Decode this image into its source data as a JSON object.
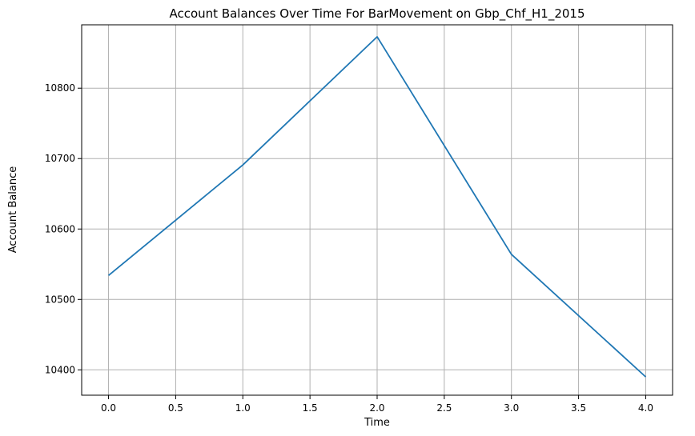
{
  "chart_data": {
    "type": "line",
    "title": "Account Balances Over Time For BarMovement on Gbp_Chf_H1_2015",
    "xlabel": "Time",
    "ylabel": "Account Balance",
    "xlim": [
      -0.2,
      4.2
    ],
    "ylim": [
      10364,
      10890
    ],
    "x_ticks": [
      0.0,
      0.5,
      1.0,
      1.5,
      2.0,
      2.5,
      3.0,
      3.5,
      4.0
    ],
    "x_tick_labels": [
      "0.0",
      "0.5",
      "1.0",
      "1.5",
      "2.0",
      "2.5",
      "3.0",
      "3.5",
      "4.0"
    ],
    "y_ticks": [
      10400,
      10500,
      10600,
      10700,
      10800
    ],
    "y_tick_labels": [
      "10400",
      "10500",
      "10600",
      "10700",
      "10800"
    ],
    "grid": true,
    "legend": "none",
    "series": [
      {
        "x": [
          0,
          1,
          2,
          3,
          4
        ],
        "values": [
          10534,
          10691,
          10873,
          10564,
          10390
        ],
        "color": "#1f77b4"
      }
    ]
  }
}
